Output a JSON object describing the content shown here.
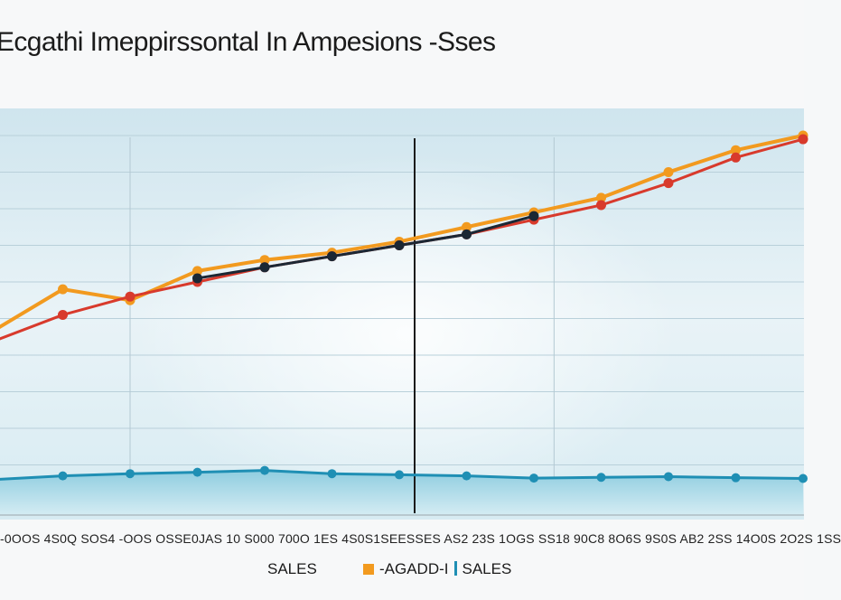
{
  "chart_data": {
    "type": "line",
    "title": "Ecgathi Imeppirssontal In Ampesions -Sses",
    "x_tick_text": "-0OOS 4S0Q SOS4 -OOS OSSE0JAS 10 S000 700O 1ES 4S0S1SEESSES AS2 23S 1OGS SS18 90C8 8O6S 9S0S AB2 2SS 14O0S 2O2S 1SS",
    "grid": true,
    "series": [
      {
        "color": "#f29a1f",
        "x": [
          0,
          1,
          2,
          3,
          4,
          5,
          6,
          7,
          8,
          9,
          10,
          11,
          12
        ],
        "values": [
          47,
          58,
          55,
          63,
          66,
          68,
          71,
          75,
          79,
          83,
          90,
          96,
          100
        ]
      },
      {
        "color": "#d83a2c",
        "x": [
          0,
          1,
          2,
          3,
          4,
          5,
          6,
          7,
          8,
          9,
          10,
          11,
          12
        ],
        "values": [
          44,
          51,
          56,
          60,
          64,
          67,
          70,
          73,
          77,
          81,
          87,
          94,
          99
        ]
      },
      {
        "color": "#1b2734",
        "x": [
          3,
          4,
          5,
          6,
          7,
          8
        ],
        "values": [
          61,
          64,
          67,
          70,
          73,
          78
        ]
      },
      {
        "color": "#1f8fb4",
        "x": [
          0,
          1,
          2,
          3,
          4,
          5,
          6,
          7,
          8,
          9,
          10,
          11,
          12
        ],
        "values": [
          6,
          7,
          7.6,
          8,
          8.5,
          7.6,
          7.3,
          7,
          6.4,
          6.6,
          6.8,
          6.5,
          6.3
        ]
      }
    ],
    "legend": [
      "SALES",
      "-AGADD-I",
      "SALES"
    ],
    "legend_colors": [
      "#f29a1f",
      "#1f8fb4"
    ]
  }
}
